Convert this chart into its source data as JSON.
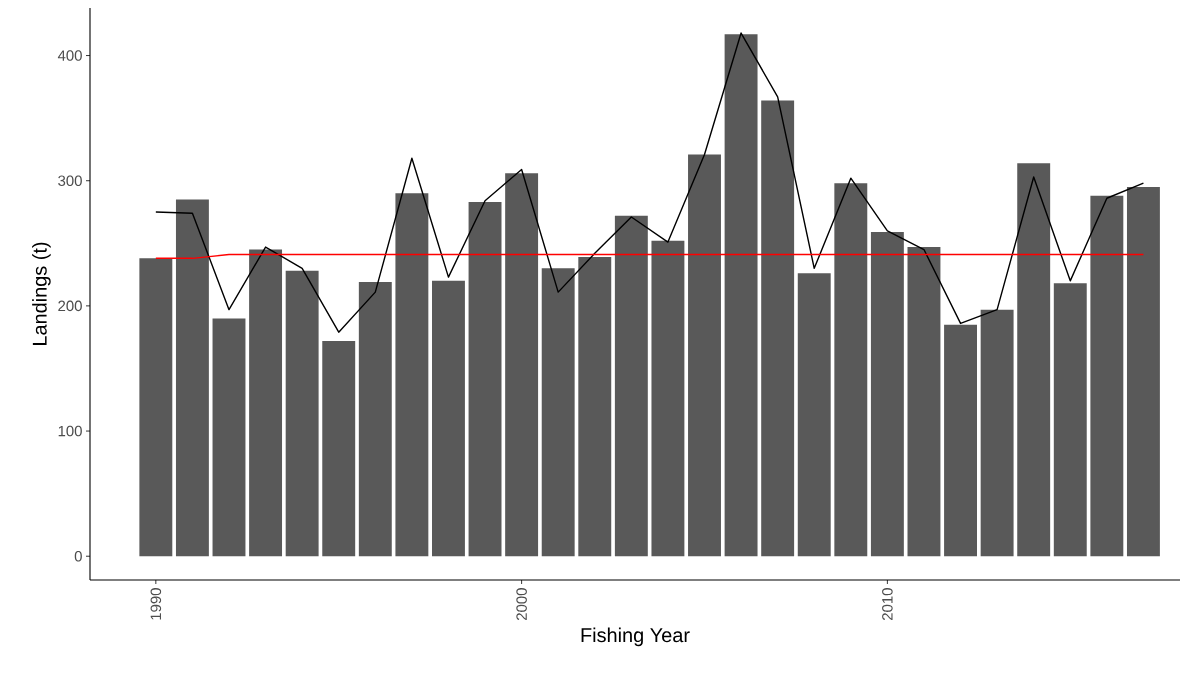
{
  "chart_data": {
    "type": "bar",
    "xlabel": "Fishing Year",
    "ylabel": "Landings (t)",
    "x": [
      1990,
      1991,
      1992,
      1993,
      1994,
      1995,
      1996,
      1997,
      1998,
      1999,
      2000,
      2001,
      2002,
      2003,
      2004,
      2005,
      2006,
      2007,
      2008,
      2009,
      2010,
      2011,
      2012,
      2013,
      2014,
      2015,
      2016,
      2017
    ],
    "series": [
      {
        "color": "#595959",
        "values": [
          238,
          285,
          190,
          245,
          228,
          172,
          219,
          290,
          220,
          283,
          306,
          230,
          239,
          272,
          252,
          321,
          417,
          364,
          226,
          298,
          259,
          247,
          185,
          197,
          314,
          218,
          288,
          295
        ]
      },
      {
        "type": "line",
        "color": "#000000",
        "values": [
          275,
          274,
          197,
          247,
          230,
          179,
          211,
          318,
          223,
          284,
          309,
          211,
          242,
          271,
          251,
          321,
          418,
          367,
          230,
          302,
          260,
          245,
          186,
          197,
          303,
          220,
          286,
          298
        ]
      },
      {
        "type": "line",
        "color": "#ff0000",
        "values": [
          238,
          238,
          241,
          241,
          241,
          241,
          241,
          241,
          241,
          241,
          241,
          241,
          241,
          241,
          241,
          241,
          241,
          241,
          241,
          241,
          241,
          241,
          241,
          241,
          241,
          241,
          241,
          241
        ]
      }
    ],
    "xlim": [
      1988.2,
      2018.0
    ],
    "ylim": [
      -19,
      438
    ],
    "xticks": [
      1990,
      2000,
      2010
    ],
    "yticks": [
      0,
      100,
      200,
      300,
      400
    ],
    "line_style": "solid",
    "marker": "none",
    "grid": false
  }
}
